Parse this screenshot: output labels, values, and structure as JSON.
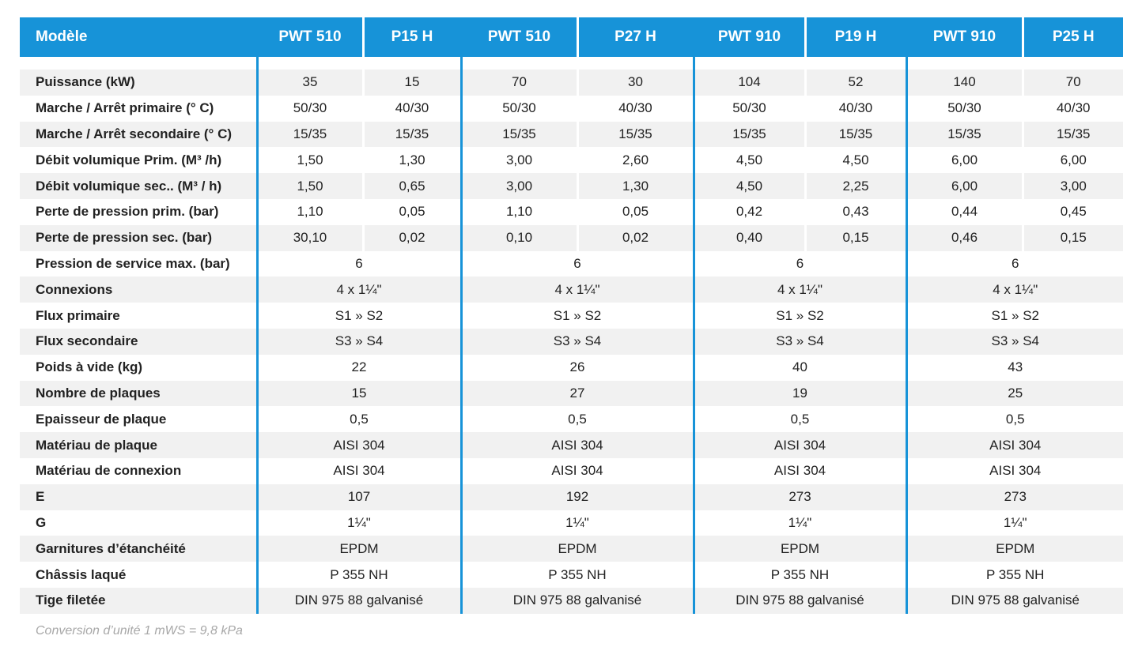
{
  "header": {
    "label": "Modèle",
    "models": [
      "PWT 510",
      "P15 H",
      "PWT 510",
      "P27 H",
      "PWT 910",
      "P19 H",
      "PWT 910",
      "P25 H"
    ]
  },
  "split_rows": [
    {
      "label": "Puissance (kW)",
      "values": [
        "35",
        "15",
        "70",
        "30",
        "104",
        "52",
        "140",
        "70"
      ]
    },
    {
      "label": "Marche / Arrêt primaire  (° C)",
      "values": [
        "50/30",
        "40/30",
        "50/30",
        "40/30",
        "50/30",
        "40/30",
        "50/30",
        "40/30"
      ]
    },
    {
      "label": "Marche / Arrêt secondaire (° C)",
      "values": [
        "15/35",
        "15/35",
        "15/35",
        "15/35",
        "15/35",
        "15/35",
        "15/35",
        "15/35"
      ]
    },
    {
      "label": "Débit volumique Prim. (M³  /h)",
      "values": [
        "1,50",
        "1,30",
        "3,00",
        "2,60",
        "4,50",
        "4,50",
        "6,00",
        "6,00"
      ]
    },
    {
      "label": "Débit volumique sec.. (M³ / h)",
      "values": [
        "1,50",
        "0,65",
        "3,00",
        "1,30",
        "4,50",
        "2,25",
        "6,00",
        "3,00"
      ]
    },
    {
      "label": "Perte de pression prim. (bar)",
      "values": [
        "1,10",
        "0,05",
        "1,10",
        "0,05",
        "0,42",
        "0,43",
        "0,44",
        "0,45"
      ]
    },
    {
      "label": "Perte de pression sec. (bar)",
      "values": [
        "30,10",
        "0,02",
        "0,10",
        "0,02",
        "0,40",
        "0,15",
        "0,46",
        "0,15"
      ]
    }
  ],
  "merged_rows": [
    {
      "label": "Pression de service max. (bar)",
      "values": [
        "6",
        "6",
        "6",
        "6"
      ]
    },
    {
      "label": "Connexions",
      "values": [
        "4 x 1¼\"",
        "4 x 1¼\"",
        "4 x 1¼\"",
        "4 x 1¼\""
      ]
    },
    {
      "label": "Flux primaire",
      "values": [
        "S1 » S2",
        "S1 » S2",
        "S1 » S2",
        "S1 » S2"
      ]
    },
    {
      "label": "Flux secondaire",
      "values": [
        "S3 » S4",
        "S3 » S4",
        "S3 » S4",
        "S3 » S4"
      ]
    },
    {
      "label": "Poids à vide (kg)",
      "values": [
        "22",
        "26",
        "40",
        "43"
      ]
    },
    {
      "label": "Nombre de plaques",
      "values": [
        "15",
        "27",
        "19",
        "25"
      ]
    },
    {
      "label": "Epaisseur de plaque",
      "values": [
        "0,5",
        "0,5",
        "0,5",
        "0,5"
      ]
    },
    {
      "label": "Matériau de plaque",
      "values": [
        "AISI 304",
        "AISI 304",
        "AISI 304",
        "AISI 304"
      ]
    },
    {
      "label": "Matériau de connexion",
      "values": [
        "AISI 304",
        "AISI 304",
        "AISI 304",
        "AISI 304"
      ]
    },
    {
      "label": "E",
      "values": [
        "107",
        "192",
        "273",
        "273"
      ]
    },
    {
      "label": "G",
      "values": [
        "1¼\"",
        "1¼\"",
        "1¼\"",
        "1¼\""
      ]
    },
    {
      "label": "Garnitures d’étanchéité",
      "values": [
        "EPDM",
        "EPDM",
        "EPDM",
        "EPDM"
      ]
    },
    {
      "label": "Châssis laqué",
      "values": [
        "P 355 NH",
        "P 355 NH",
        "P 355 NH",
        "P 355 NH"
      ]
    },
    {
      "label": "Tige filetée",
      "values": [
        "DIN 975 88 galvanisé",
        "DIN 975 88 galvanisé",
        "DIN 975 88 galvanisé",
        "DIN 975 88 galvanisé"
      ]
    }
  ],
  "footnote": "Conversion d’unité 1 mWS = 9,8 kPa",
  "colors": {
    "accent": "#1793d8",
    "row_alt": "#f1f1f1",
    "footnote": "#a8a8a8"
  }
}
